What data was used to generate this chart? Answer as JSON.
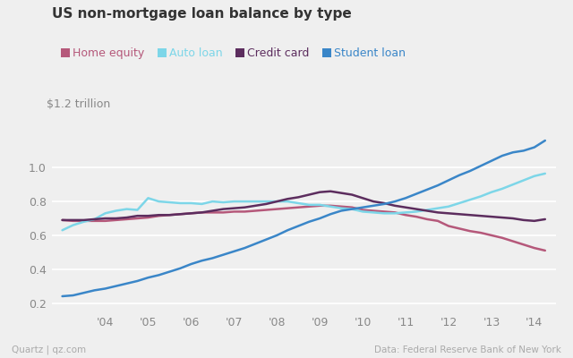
{
  "title": "US non-mortgage loan balance by type",
  "ylabel": "$1.2 trillion",
  "source_left": "Quartz | qz.com",
  "source_right": "Data: Federal Reserve Bank of New York",
  "legend": [
    "Home equity",
    "Auto loan",
    "Credit card",
    "Student loan"
  ],
  "colors": {
    "home_equity": "#b5587a",
    "auto_loan": "#7dd6e8",
    "credit_card": "#5c2d5e",
    "student_loan": "#3a86c8"
  },
  "x_tick_labels": [
    "'04",
    "'05",
    "'06",
    "'07",
    "'08",
    "'09",
    "'10",
    "'11",
    "'12",
    "'13",
    "'14"
  ],
  "x_tick_positions": [
    4,
    5,
    6,
    7,
    8,
    9,
    10,
    11,
    12,
    13,
    14
  ],
  "ylim": [
    0.15,
    1.25
  ],
  "yticks": [
    0.2,
    0.4,
    0.6,
    0.8,
    1.0
  ],
  "home_equity": {
    "x": [
      3.0,
      3.25,
      3.5,
      3.75,
      4.0,
      4.25,
      4.5,
      4.75,
      5.0,
      5.25,
      5.5,
      5.75,
      6.0,
      6.25,
      6.5,
      6.75,
      7.0,
      7.25,
      7.5,
      7.75,
      8.0,
      8.25,
      8.5,
      8.75,
      9.0,
      9.25,
      9.5,
      9.75,
      10.0,
      10.25,
      10.5,
      10.75,
      11.0,
      11.25,
      11.5,
      11.75,
      12.0,
      12.25,
      12.5,
      12.75,
      13.0,
      13.25,
      13.5,
      13.75,
      14.0,
      14.25
    ],
    "y": [
      0.69,
      0.685,
      0.685,
      0.685,
      0.685,
      0.69,
      0.695,
      0.7,
      0.705,
      0.715,
      0.72,
      0.725,
      0.73,
      0.735,
      0.735,
      0.735,
      0.74,
      0.74,
      0.745,
      0.75,
      0.755,
      0.76,
      0.765,
      0.77,
      0.775,
      0.775,
      0.77,
      0.765,
      0.75,
      0.745,
      0.74,
      0.735,
      0.72,
      0.71,
      0.695,
      0.685,
      0.655,
      0.64,
      0.625,
      0.615,
      0.6,
      0.585,
      0.565,
      0.545,
      0.525,
      0.51
    ]
  },
  "auto_loan": {
    "x": [
      3.0,
      3.25,
      3.5,
      3.75,
      4.0,
      4.25,
      4.5,
      4.75,
      5.0,
      5.25,
      5.5,
      5.75,
      6.0,
      6.25,
      6.5,
      6.75,
      7.0,
      7.25,
      7.5,
      7.75,
      8.0,
      8.25,
      8.5,
      8.75,
      9.0,
      9.25,
      9.5,
      9.75,
      10.0,
      10.25,
      10.5,
      10.75,
      11.0,
      11.25,
      11.5,
      11.75,
      12.0,
      12.25,
      12.5,
      12.75,
      13.0,
      13.25,
      13.5,
      13.75,
      14.0,
      14.25
    ],
    "y": [
      0.63,
      0.66,
      0.68,
      0.695,
      0.73,
      0.745,
      0.755,
      0.75,
      0.82,
      0.8,
      0.795,
      0.79,
      0.79,
      0.785,
      0.8,
      0.795,
      0.8,
      0.8,
      0.8,
      0.8,
      0.8,
      0.8,
      0.79,
      0.78,
      0.78,
      0.77,
      0.76,
      0.755,
      0.74,
      0.735,
      0.73,
      0.73,
      0.735,
      0.74,
      0.75,
      0.76,
      0.77,
      0.79,
      0.81,
      0.83,
      0.855,
      0.875,
      0.9,
      0.925,
      0.95,
      0.965
    ]
  },
  "credit_card": {
    "x": [
      3.0,
      3.25,
      3.5,
      3.75,
      4.0,
      4.25,
      4.5,
      4.75,
      5.0,
      5.25,
      5.5,
      5.75,
      6.0,
      6.25,
      6.5,
      6.75,
      7.0,
      7.25,
      7.5,
      7.75,
      8.0,
      8.25,
      8.5,
      8.75,
      9.0,
      9.25,
      9.5,
      9.75,
      10.0,
      10.25,
      10.5,
      10.75,
      11.0,
      11.25,
      11.5,
      11.75,
      12.0,
      12.25,
      12.5,
      12.75,
      13.0,
      13.25,
      13.5,
      13.75,
      14.0,
      14.25
    ],
    "y": [
      0.69,
      0.69,
      0.69,
      0.695,
      0.7,
      0.7,
      0.705,
      0.715,
      0.715,
      0.72,
      0.72,
      0.725,
      0.73,
      0.735,
      0.745,
      0.755,
      0.76,
      0.765,
      0.775,
      0.785,
      0.8,
      0.815,
      0.825,
      0.84,
      0.855,
      0.86,
      0.85,
      0.84,
      0.82,
      0.8,
      0.79,
      0.775,
      0.765,
      0.755,
      0.745,
      0.735,
      0.73,
      0.725,
      0.72,
      0.715,
      0.71,
      0.705,
      0.7,
      0.69,
      0.685,
      0.695
    ]
  },
  "student_loan": {
    "x": [
      3.0,
      3.25,
      3.5,
      3.75,
      4.0,
      4.25,
      4.5,
      4.75,
      5.0,
      5.25,
      5.5,
      5.75,
      6.0,
      6.25,
      6.5,
      6.75,
      7.0,
      7.25,
      7.5,
      7.75,
      8.0,
      8.25,
      8.5,
      8.75,
      9.0,
      9.25,
      9.5,
      9.75,
      10.0,
      10.25,
      10.5,
      10.75,
      11.0,
      11.25,
      11.5,
      11.75,
      12.0,
      12.25,
      12.5,
      12.75,
      13.0,
      13.25,
      13.5,
      13.75,
      14.0,
      14.25
    ],
    "y": [
      0.24,
      0.245,
      0.26,
      0.275,
      0.285,
      0.3,
      0.315,
      0.33,
      0.35,
      0.365,
      0.385,
      0.405,
      0.43,
      0.45,
      0.465,
      0.485,
      0.505,
      0.525,
      0.55,
      0.575,
      0.6,
      0.63,
      0.655,
      0.68,
      0.7,
      0.725,
      0.745,
      0.755,
      0.765,
      0.775,
      0.785,
      0.8,
      0.82,
      0.845,
      0.87,
      0.895,
      0.925,
      0.955,
      0.98,
      1.01,
      1.04,
      1.07,
      1.09,
      1.1,
      1.12,
      1.16
    ]
  },
  "bg_color": "#efefef",
  "grid_color": "#ffffff",
  "line_width": 1.8
}
